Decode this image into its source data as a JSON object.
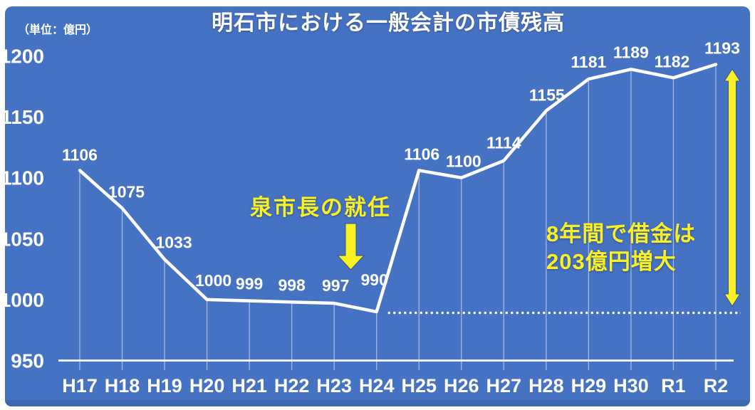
{
  "slide": {
    "title": "明石市における一般会計の市債残高",
    "unit_label": "（単位：億円）"
  },
  "colors": {
    "background": "#4672c4",
    "footer_strip": "#3f66b0",
    "page_margin": "#ffffff",
    "line": "#ffffff",
    "text": "#ffffff",
    "accent_yellow": "#f9f122",
    "arrow_outline": "#2f5496"
  },
  "chart_data": {
    "type": "line",
    "title": "明石市における一般会計の市債残高",
    "unit": "億円",
    "categories": [
      "H17",
      "H18",
      "H19",
      "H20",
      "H21",
      "H22",
      "H23",
      "H24",
      "H25",
      "H26",
      "H27",
      "H28",
      "H29",
      "H30",
      "R1",
      "R2"
    ],
    "values": [
      1106,
      1075,
      1033,
      1000,
      999,
      998,
      997,
      990,
      1106,
      1100,
      1114,
      1155,
      1181,
      1189,
      1182,
      1193
    ],
    "yticks": [
      950,
      1000,
      1050,
      1100,
      1150,
      1200
    ],
    "ylim": [
      950,
      1200
    ],
    "xlabel": "",
    "ylabel": "（単位：億円）",
    "grid": false,
    "legend": false,
    "line_color": "#ffffff",
    "data_labels": true,
    "baseline": {
      "value": 990,
      "style": "dotted",
      "from_category": "H24",
      "to_category": "R2"
    },
    "annotations": [
      {
        "type": "text-with-down-arrow",
        "text": "泉市長の就任",
        "target_category": "H24"
      },
      {
        "type": "text",
        "lines": [
          "8年間で借金は",
          "203億円増大"
        ]
      },
      {
        "type": "vertical-range-arrow",
        "from_value": 990,
        "to_value": 1193,
        "near_category": "R2"
      }
    ]
  }
}
